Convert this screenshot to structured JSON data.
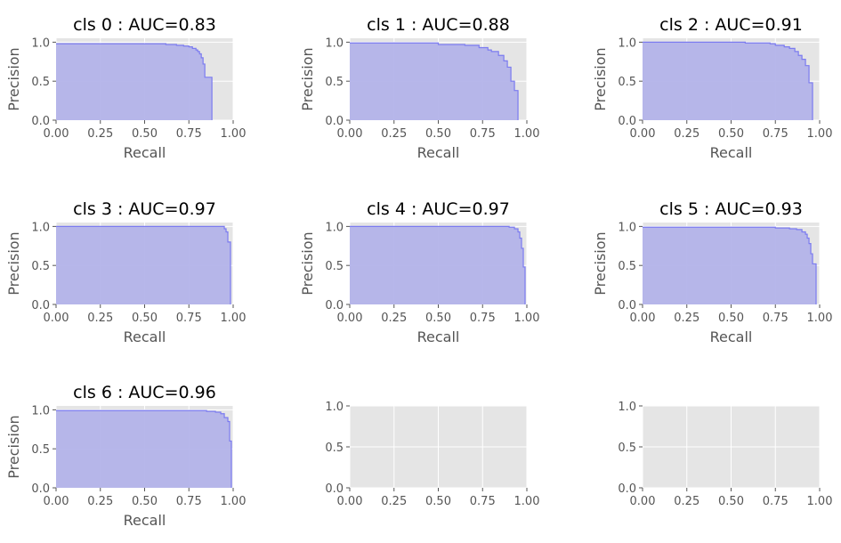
{
  "colors": {
    "axes_bg": "#e5e5e5",
    "grid": "#ffffff",
    "fill": "#b3b3e9",
    "line": "#7b7bf0",
    "text": "#555555",
    "title": "#000000"
  },
  "chart_data": [
    {
      "type": "area",
      "step": true,
      "title": "cls 0 : AUC=0.83",
      "xlabel": "Recall",
      "ylabel": "Precision",
      "xlim": [
        0,
        1
      ],
      "ylim": [
        0,
        1.05
      ],
      "grid": true,
      "xticks": [
        "0.00",
        "0.25",
        "0.50",
        "0.75",
        "1.00"
      ],
      "yticks": [
        "0.0",
        "0.5",
        "1.0"
      ],
      "x": [
        0,
        0.5,
        0.62,
        0.68,
        0.72,
        0.75,
        0.77,
        0.79,
        0.8,
        0.81,
        0.82,
        0.83,
        0.84,
        0.86,
        0.88
      ],
      "y": [
        0.98,
        0.98,
        0.97,
        0.96,
        0.95,
        0.94,
        0.92,
        0.9,
        0.88,
        0.85,
        0.8,
        0.72,
        0.55,
        0.55,
        0
      ]
    },
    {
      "type": "area",
      "step": true,
      "title": "cls 1 : AUC=0.88",
      "xlabel": "Recall",
      "ylabel": "Precision",
      "xlim": [
        0,
        1
      ],
      "ylim": [
        0,
        1.05
      ],
      "grid": true,
      "xticks": [
        "0.00",
        "0.25",
        "0.50",
        "0.75",
        "1.00"
      ],
      "yticks": [
        "0.0",
        "0.5",
        "1.0"
      ],
      "x": [
        0,
        0.48,
        0.5,
        0.65,
        0.73,
        0.78,
        0.8,
        0.84,
        0.87,
        0.89,
        0.91,
        0.93,
        0.95
      ],
      "y": [
        0.99,
        0.99,
        0.97,
        0.96,
        0.93,
        0.9,
        0.88,
        0.83,
        0.76,
        0.68,
        0.5,
        0.38,
        0
      ]
    },
    {
      "type": "area",
      "step": true,
      "title": "cls 2 : AUC=0.91",
      "xlabel": "Recall",
      "ylabel": "Precision",
      "xlim": [
        0,
        1
      ],
      "ylim": [
        0,
        1.05
      ],
      "grid": true,
      "xticks": [
        "0.00",
        "0.25",
        "0.50",
        "0.75",
        "1.00"
      ],
      "yticks": [
        "0.0",
        "0.5",
        "1.0"
      ],
      "x": [
        0,
        0.58,
        0.72,
        0.75,
        0.8,
        0.83,
        0.86,
        0.88,
        0.9,
        0.92,
        0.94,
        0.96
      ],
      "y": [
        1.0,
        0.99,
        0.98,
        0.96,
        0.94,
        0.92,
        0.88,
        0.83,
        0.78,
        0.7,
        0.48,
        0
      ]
    },
    {
      "type": "area",
      "step": true,
      "title": "cls 3 : AUC=0.97",
      "xlabel": "Recall",
      "ylabel": "Precision",
      "xlim": [
        0,
        1
      ],
      "ylim": [
        0,
        1.05
      ],
      "grid": true,
      "xticks": [
        "0.00",
        "0.25",
        "0.50",
        "0.75",
        "1.00"
      ],
      "yticks": [
        "0.0",
        "0.5",
        "1.0"
      ],
      "x": [
        0,
        0.93,
        0.95,
        0.96,
        0.97,
        0.985
      ],
      "y": [
        1.0,
        1.0,
        0.97,
        0.93,
        0.8,
        0
      ]
    },
    {
      "type": "area",
      "step": true,
      "title": "cls 4 : AUC=0.97",
      "xlabel": "Recall",
      "ylabel": "Precision",
      "xlim": [
        0,
        1
      ],
      "ylim": [
        0,
        1.05
      ],
      "grid": true,
      "xticks": [
        "0.00",
        "0.25",
        "0.50",
        "0.75",
        "1.00"
      ],
      "yticks": [
        "0.0",
        "0.5",
        "1.0"
      ],
      "x": [
        0,
        0.75,
        0.9,
        0.93,
        0.95,
        0.96,
        0.97,
        0.98,
        0.99
      ],
      "y": [
        1.0,
        1.0,
        0.99,
        0.97,
        0.93,
        0.85,
        0.72,
        0.48,
        0
      ]
    },
    {
      "type": "area",
      "step": true,
      "title": "cls 5 : AUC=0.93",
      "xlabel": "Recall",
      "ylabel": "Precision",
      "xlim": [
        0,
        1
      ],
      "ylim": [
        0,
        1.05
      ],
      "grid": true,
      "xticks": [
        "0.00",
        "0.25",
        "0.50",
        "0.75",
        "1.00"
      ],
      "yticks": [
        "0.0",
        "0.5",
        "1.0"
      ],
      "x": [
        0,
        0.75,
        0.83,
        0.87,
        0.9,
        0.92,
        0.93,
        0.94,
        0.95,
        0.96,
        0.98
      ],
      "y": [
        0.99,
        0.98,
        0.97,
        0.96,
        0.93,
        0.9,
        0.85,
        0.78,
        0.65,
        0.52,
        0
      ]
    },
    {
      "type": "area",
      "step": true,
      "title": "cls 6 : AUC=0.96",
      "xlabel": "Recall",
      "ylabel": "Precision",
      "xlim": [
        0,
        1
      ],
      "ylim": [
        0,
        1.05
      ],
      "grid": true,
      "xticks": [
        "0.00",
        "0.25",
        "0.50",
        "0.75",
        "1.00"
      ],
      "yticks": [
        "0.0",
        "0.5",
        "1.0"
      ],
      "x": [
        0,
        0.85,
        0.9,
        0.93,
        0.95,
        0.97,
        0.98,
        0.99
      ],
      "y": [
        0.99,
        0.98,
        0.97,
        0.95,
        0.9,
        0.85,
        0.6,
        0
      ]
    },
    {
      "type": "area",
      "empty": true,
      "title": "",
      "xlabel": "",
      "ylabel": "",
      "xlim": [
        0,
        1
      ],
      "ylim": [
        0,
        1
      ],
      "grid": true,
      "xticks": [
        "0.00",
        "0.25",
        "0.50",
        "0.75",
        "1.00"
      ],
      "yticks": [
        "0.0",
        "0.5",
        "1.0"
      ],
      "x": [],
      "y": []
    },
    {
      "type": "area",
      "empty": true,
      "title": "",
      "xlabel": "",
      "ylabel": "",
      "xlim": [
        0,
        1
      ],
      "ylim": [
        0,
        1
      ],
      "grid": true,
      "xticks": [
        "0.00",
        "0.25",
        "0.50",
        "0.75",
        "1.00"
      ],
      "yticks": [
        "0.0",
        "0.5",
        "1.0"
      ],
      "x": [],
      "y": []
    }
  ]
}
